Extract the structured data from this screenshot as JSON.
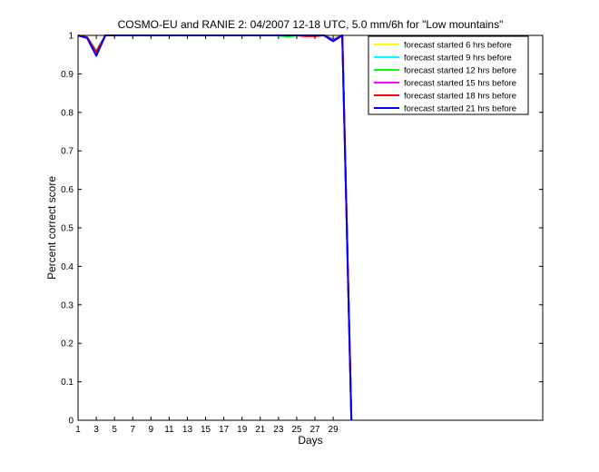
{
  "chart_data": {
    "type": "line",
    "title": "COSMO-EU and RANIE 2: 04/2007 12-18 UTC, 5.0 mm/6h for \"Low mountains\"",
    "xlabel": "Days",
    "ylabel": "Percent correct score",
    "xlim": [
      1,
      52
    ],
    "ylim": [
      0,
      1
    ],
    "xticks": [
      1,
      3,
      5,
      7,
      9,
      11,
      13,
      15,
      17,
      19,
      21,
      23,
      25,
      27,
      29
    ],
    "yticks": [
      0,
      0.1,
      0.2,
      0.3,
      0.4,
      0.5,
      0.6,
      0.7,
      0.8,
      0.9,
      1
    ],
    "ytick_labels": [
      "0",
      "0.1",
      "0.2",
      "0.3",
      "0.4",
      "0.5",
      "0.6",
      "0.7",
      "0.8",
      "0.9",
      "1"
    ],
    "legend_position": "top-right",
    "grid": false,
    "series": [
      {
        "name": "forecast started 6 hrs before",
        "color": "#ffff00",
        "x": [
          1,
          2,
          3,
          4,
          24,
          25,
          27,
          28,
          29,
          30,
          31
        ],
        "y": [
          1,
          0.995,
          0.96,
          1,
          1,
          1,
          1,
          1,
          0.99,
          1,
          0
        ]
      },
      {
        "name": "forecast started 9 hrs before",
        "color": "#00ffff",
        "x": [
          1,
          2,
          3,
          4,
          24,
          25,
          27,
          28,
          29,
          30,
          31
        ],
        "y": [
          1,
          0.995,
          0.96,
          1,
          1,
          1,
          1,
          1,
          0.99,
          1,
          0
        ]
      },
      {
        "name": "forecast started 12 hrs before",
        "color": "#00ff00",
        "x": [
          1,
          2,
          3,
          4,
          23,
          24,
          25,
          27,
          28,
          29,
          30,
          31
        ],
        "y": [
          1,
          0.995,
          0.96,
          1,
          1,
          0.997,
          1,
          1,
          1,
          0.99,
          1,
          0
        ]
      },
      {
        "name": "forecast started 15 hrs before",
        "color": "#ff00ff",
        "x": [
          1,
          2,
          3,
          4,
          24,
          25,
          27,
          28,
          29,
          30,
          31
        ],
        "y": [
          1,
          0.995,
          0.957,
          1,
          1,
          1,
          1,
          1,
          0.988,
          1,
          0
        ]
      },
      {
        "name": "forecast started 18 hrs before",
        "color": "#ff0000",
        "x": [
          1,
          2,
          3,
          4,
          24,
          25,
          26,
          27,
          28,
          29,
          30,
          31
        ],
        "y": [
          1,
          0.995,
          0.955,
          1,
          1,
          1,
          0.998,
          0.998,
          1,
          0.985,
          1,
          0
        ]
      },
      {
        "name": "forecast started 21 hrs before",
        "color": "#0000ff",
        "x": [
          1,
          2,
          3,
          4,
          24,
          25,
          27,
          28,
          29,
          30,
          31
        ],
        "y": [
          1,
          0.993,
          0.947,
          1,
          1,
          1,
          1,
          1,
          0.985,
          1,
          0
        ]
      }
    ]
  }
}
